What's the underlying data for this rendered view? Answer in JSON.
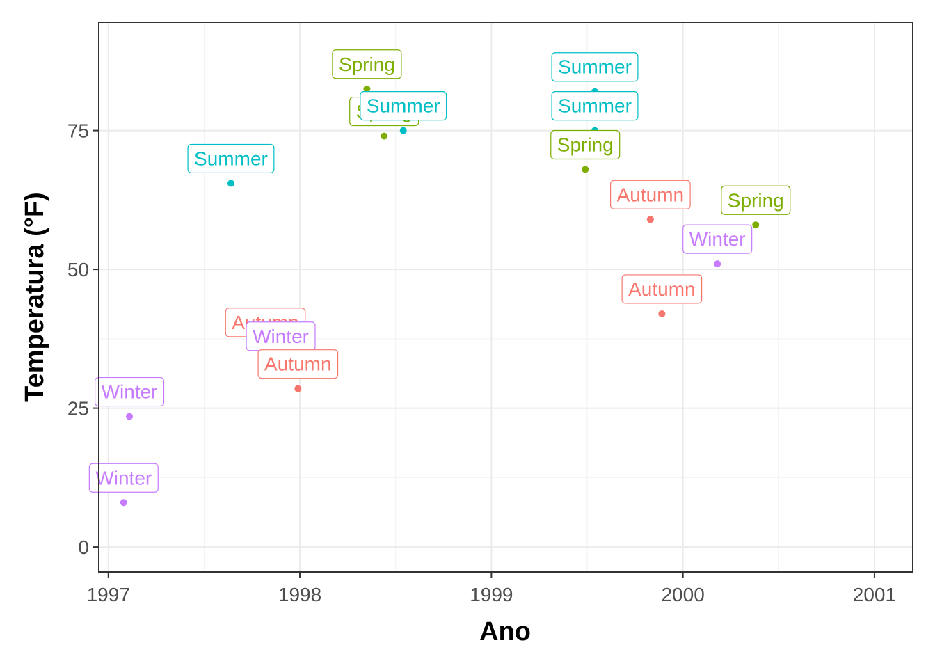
{
  "chart_data": {
    "type": "scatter",
    "title": "",
    "xlabel": "Ano",
    "ylabel": "Temperatura (°F)",
    "xlim": [
      1996.95,
      2001.2
    ],
    "ylim": [
      -4.5,
      94.5
    ],
    "x_ticks": [
      1997,
      1998,
      1999,
      2000,
      2001
    ],
    "y_ticks": [
      0,
      25,
      50,
      75
    ],
    "grid": true,
    "legend": "none",
    "colors": {
      "Autumn": "#F8766D",
      "Spring": "#7CAE00",
      "Summer": "#00BFC4",
      "Winter": "#C77CFF"
    },
    "points": [
      {
        "x": 1997.08,
        "y": 8.0,
        "season": "Winter"
      },
      {
        "x": 1997.11,
        "y": 23.5,
        "season": "Winter"
      },
      {
        "x": 1997.64,
        "y": 65.5,
        "season": "Summer"
      },
      {
        "x": 1997.82,
        "y": 36.0,
        "season": "Autumn"
      },
      {
        "x": 1997.9,
        "y": 33.5,
        "season": "Winter"
      },
      {
        "x": 1997.99,
        "y": 28.5,
        "season": "Autumn"
      },
      {
        "x": 1998.35,
        "y": 82.5,
        "season": "Spring"
      },
      {
        "x": 1998.44,
        "y": 74.0,
        "season": "Spring"
      },
      {
        "x": 1998.54,
        "y": 75.0,
        "season": "Summer"
      },
      {
        "x": 1999.49,
        "y": 68.0,
        "season": "Spring"
      },
      {
        "x": 1999.54,
        "y": 82.0,
        "season": "Summer"
      },
      {
        "x": 1999.54,
        "y": 75.0,
        "season": "Summer"
      },
      {
        "x": 1999.83,
        "y": 59.0,
        "season": "Autumn"
      },
      {
        "x": 1999.89,
        "y": 42.0,
        "season": "Autumn"
      },
      {
        "x": 2000.18,
        "y": 51.0,
        "season": "Winter"
      },
      {
        "x": 2000.38,
        "y": 58.0,
        "season": "Spring"
      }
    ]
  }
}
